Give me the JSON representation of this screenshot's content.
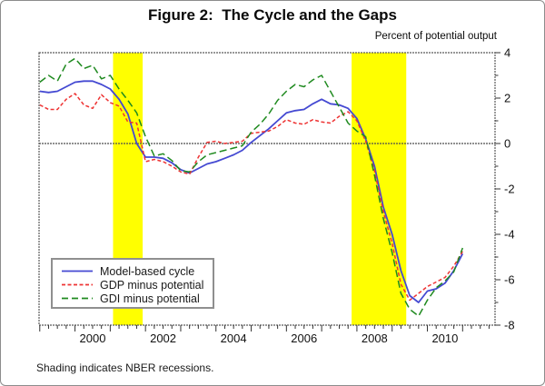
{
  "title": "Figure 2:  The Cycle and the Gaps",
  "y_axis_title": "Percent of potential output",
  "footnote": "Shading indicates NBER recessions.",
  "legend": {
    "items": [
      {
        "label": "Model-based cycle",
        "color": "#4449d2",
        "style": "solid"
      },
      {
        "label": "GDP minus potential",
        "color": "#ee3333",
        "style": "dashed"
      },
      {
        "label": "GDI minus potential",
        "color": "#1f8a1f",
        "style": "long-dash"
      }
    ]
  },
  "chart_data": {
    "type": "line",
    "title": "Figure 2: The Cycle and the Gaps",
    "ylabel": "Percent of potential output",
    "ylim": [
      -8,
      4
    ],
    "xlim": [
      1998.98,
      2011.92
    ],
    "y_major_ticks": [
      4,
      2,
      0,
      -2,
      -4,
      -6,
      -8
    ],
    "y_minor_ticks": [
      3,
      1,
      -1,
      -3,
      -5,
      -7
    ],
    "x_tick_labels": [
      "2000",
      "2002",
      "2004",
      "2006",
      "2008",
      "2010"
    ],
    "x_minor_tick_step": 0.25,
    "zero_line": 0,
    "grid": false,
    "legend_position": "lower-left",
    "band_color": "#ffff00",
    "recession_bands": [
      [
        2001.08,
        2001.92
      ],
      [
        2007.85,
        2009.4
      ]
    ],
    "x_start": 1999.0,
    "x_step": 0.25,
    "series": [
      {
        "name": "Model-based cycle",
        "color": "#4449d2",
        "dash": "",
        "width": 1.8,
        "values": [
          2.3,
          2.25,
          2.3,
          2.5,
          2.7,
          2.75,
          2.75,
          2.6,
          2.4,
          1.95,
          1.3,
          0.0,
          -0.6,
          -0.6,
          -0.65,
          -0.85,
          -1.15,
          -1.3,
          -1.1,
          -0.9,
          -0.8,
          -0.65,
          -0.5,
          -0.3,
          0.05,
          0.35,
          0.65,
          1.0,
          1.35,
          1.45,
          1.5,
          1.75,
          1.95,
          1.75,
          1.7,
          1.55,
          1.1,
          0.2,
          -1.0,
          -2.8,
          -4.0,
          -5.6,
          -6.7,
          -7.0,
          -6.5,
          -6.4,
          -6.15,
          -5.6,
          -4.85
        ]
      },
      {
        "name": "GDP minus potential",
        "color": "#ee3333",
        "dash": "4 2.5",
        "width": 1.5,
        "values": [
          1.7,
          1.5,
          1.5,
          1.95,
          2.2,
          1.7,
          1.55,
          2.15,
          1.8,
          1.65,
          0.95,
          0.9,
          -0.8,
          -0.7,
          -0.8,
          -1.0,
          -1.25,
          -1.35,
          -0.6,
          0.05,
          0.1,
          0.0,
          0.05,
          0.1,
          0.45,
          0.5,
          0.55,
          0.75,
          1.05,
          0.9,
          0.85,
          1.05,
          0.95,
          0.9,
          1.2,
          1.4,
          1.0,
          0.1,
          -1.2,
          -3.0,
          -4.4,
          -6.2,
          -6.9,
          -6.6,
          -6.3,
          -6.1,
          -5.9,
          -5.4,
          -4.75
        ]
      },
      {
        "name": "GDI minus potential",
        "color": "#1f8a1f",
        "dash": "8 4",
        "width": 1.5,
        "values": [
          2.7,
          3.0,
          2.75,
          3.5,
          3.75,
          3.3,
          3.45,
          2.85,
          3.0,
          2.4,
          1.9,
          1.35,
          0.3,
          -0.55,
          -0.45,
          -0.75,
          -1.2,
          -1.25,
          -0.8,
          -0.5,
          -0.4,
          -0.3,
          -0.2,
          -0.1,
          0.5,
          0.85,
          1.3,
          1.9,
          2.3,
          2.6,
          2.5,
          2.8,
          3.0,
          2.3,
          1.6,
          0.9,
          0.55,
          0.3,
          -1.4,
          -3.3,
          -4.8,
          -6.6,
          -7.3,
          -7.6,
          -6.9,
          -6.35,
          -6.05,
          -5.65,
          -4.6
        ]
      }
    ]
  }
}
